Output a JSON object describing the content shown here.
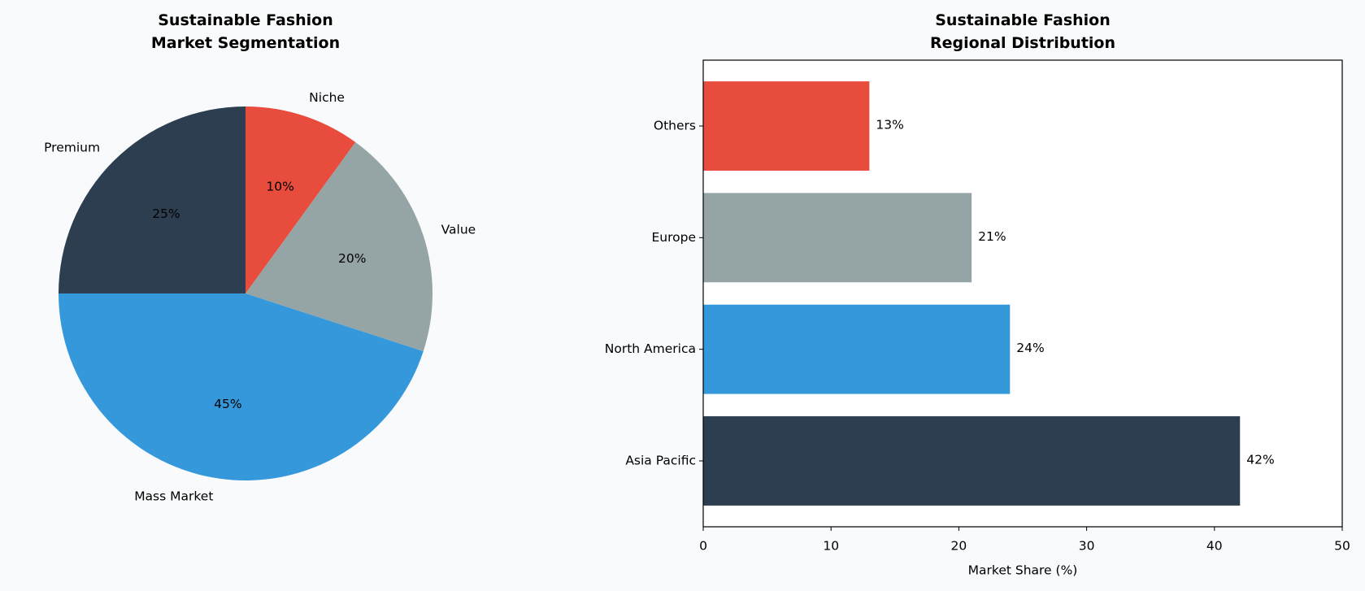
{
  "chart_data": [
    {
      "type": "pie",
      "title": "Sustainable Fashion\nMarket Segmentation",
      "categories": [
        "Premium",
        "Mass Market",
        "Value",
        "Niche"
      ],
      "values": [
        25,
        45,
        20,
        10
      ],
      "value_labels": [
        "25%",
        "45%",
        "20%",
        "10%"
      ],
      "colors": [
        "#2c3e50",
        "#3498db",
        "#95a5a6",
        "#e74c3c"
      ]
    },
    {
      "type": "barh",
      "title": "Sustainable Fashion\nRegional Distribution",
      "categories": [
        "Asia Pacific",
        "North America",
        "Europe",
        "Others"
      ],
      "values": [
        42,
        24,
        21,
        13
      ],
      "value_labels": [
        "42%",
        "24%",
        "21%",
        "13%"
      ],
      "colors": [
        "#2c3e50",
        "#3498db",
        "#95a5a6",
        "#e74c3c"
      ],
      "xlabel": "Market Share (%)",
      "xlim": [
        0,
        50
      ],
      "xticks": [
        0,
        10,
        20,
        30,
        40,
        50
      ]
    }
  ]
}
